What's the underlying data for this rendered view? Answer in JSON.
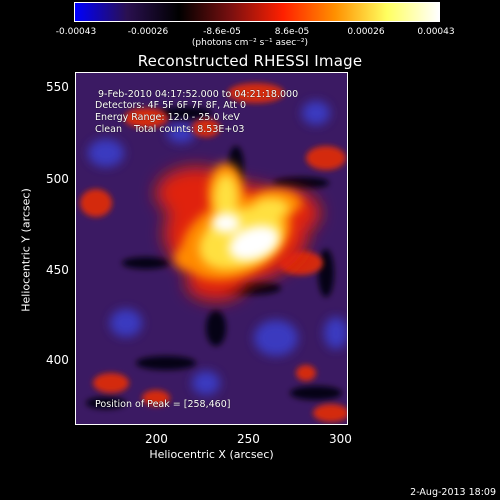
{
  "colorbar": {
    "tick_labels": [
      "-0.00043",
      "-0.00026",
      "-8.6e-05",
      "8.6e-05",
      "0.00026",
      "0.00043"
    ],
    "units_label": "(photons cm⁻² s⁻¹ asec⁻²)",
    "gradient_colors": [
      "#0000ff",
      "#2a1050",
      "#000000",
      "#7a1010",
      "#ff2000",
      "#ff9000",
      "#ffff60",
      "#ffffff"
    ]
  },
  "plot": {
    "title": "Reconstructed RHESSI Image",
    "annotation_time": "9-Feb-2010 04:17:52.000 to 04:21:18.000",
    "annotation_detectors": "Detectors: 4F 5F 6F 7F 8F, Att 0",
    "annotation_energy": "Energy Range: 12.0 - 25.0 keV",
    "annotation_clean": "Clean    Total counts: 8.53E+03",
    "annotation_peak": "Position of Peak = [258,460]",
    "x_ticks": [
      "200",
      "250",
      "300"
    ],
    "y_ticks": [
      "550",
      "500",
      "450",
      "400"
    ],
    "xlabel": "Heliocentric X (arcsec)",
    "ylabel": "Heliocentric Y (arcsec)",
    "background_color": "#3b1a63",
    "peak_color": "#ffffff"
  },
  "footer": {
    "timestamp": "2-Aug-2013 18:09"
  }
}
